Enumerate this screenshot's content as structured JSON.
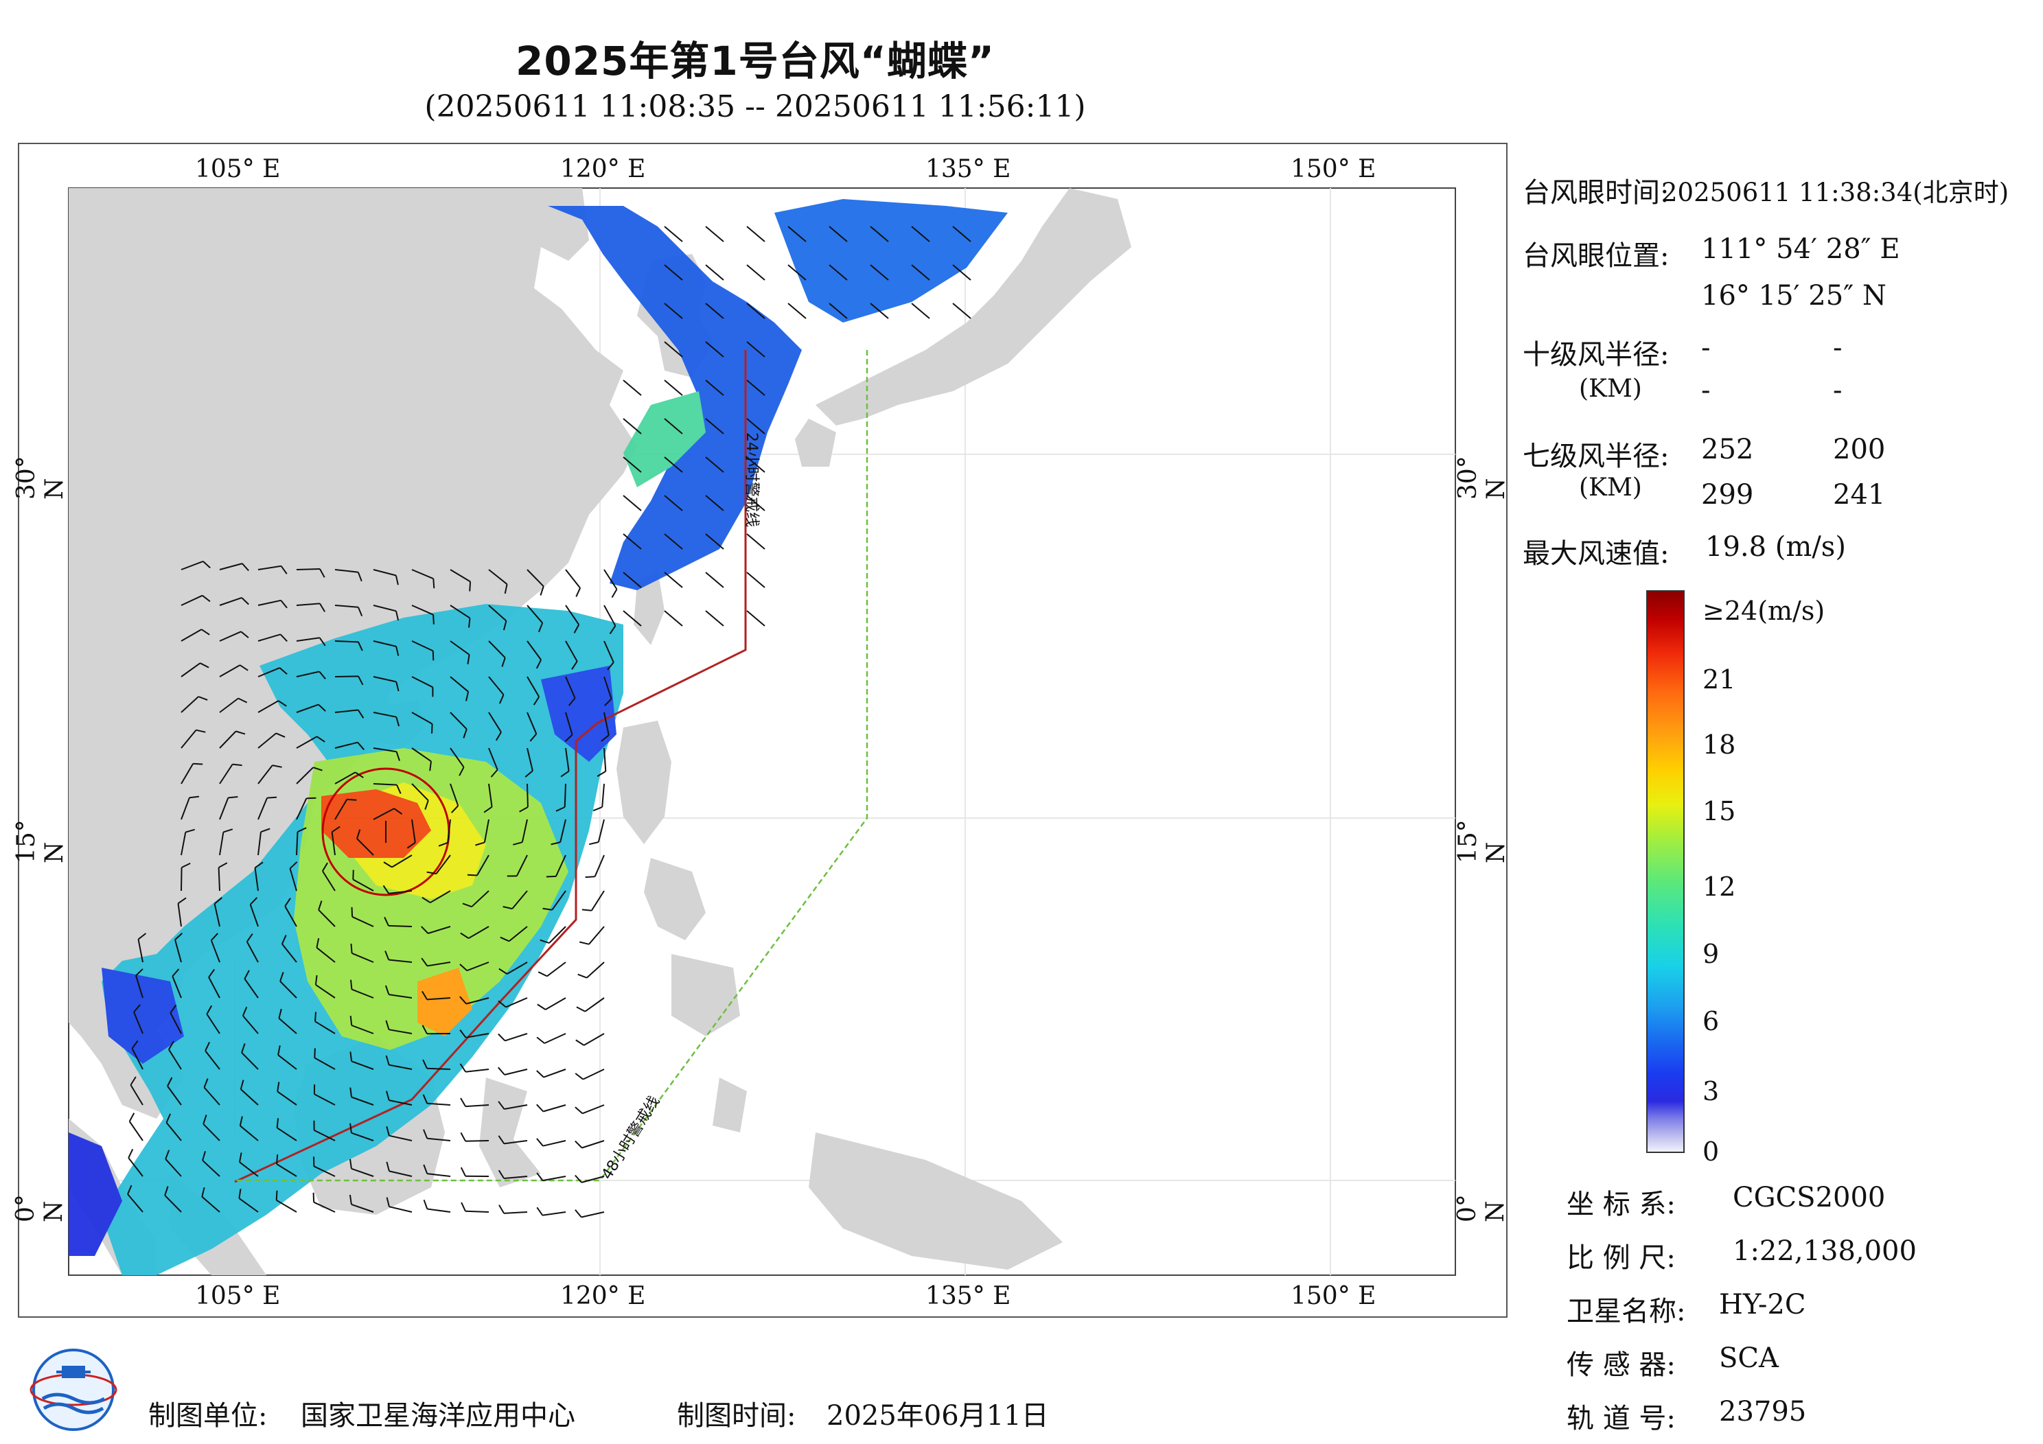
{
  "header": {
    "title": "2025年第1号台风“蝴蝶”",
    "subtitle": "(20250611 11:08:35 -- 20250611 11:56:11)"
  },
  "map": {
    "lon_ticks": [
      "105° E",
      "120° E",
      "135° E",
      "150° E"
    ],
    "lat_ticks": [
      "30° N",
      "15° N",
      "0° N"
    ],
    "line_24h_label": "24小时警戒线",
    "line_48h_label": "48小时警戒线"
  },
  "info": {
    "eye_time_label": "台风眼时间:",
    "eye_time_value": "20250611 11:38:34(北京时)",
    "eye_pos_label": "台风眼位置:",
    "eye_lon": "111° 54′ 28″ E",
    "eye_lat": "16° 15′ 25″ N",
    "r10_label": "十级风半径:",
    "r10_unit": "(KM)",
    "r10_values": [
      "-",
      "-",
      "-",
      "-"
    ],
    "r7_label": "七级风半径:",
    "r7_unit": "(KM)",
    "r7_values": [
      "252",
      "200",
      "299",
      "241"
    ],
    "max_wind_label": "最大风速值:",
    "max_wind_value": "19.8  (m/s)"
  },
  "colorbar": {
    "labels": [
      "≥24(m/s)",
      "21",
      "18",
      "15",
      "12",
      "9",
      "6",
      "3",
      "0"
    ]
  },
  "meta": {
    "coord_label": "坐 标 系:",
    "coord_value": "CGCS2000",
    "scale_label": "比 例 尺:",
    "scale_value": "1:22,138,000",
    "satellite_label": "卫星名称:",
    "satellite_value": "HY-2C",
    "sensor_label": "传 感 器:",
    "sensor_value": "SCA",
    "orbit_label": "轨 道 号:",
    "orbit_value": "23795"
  },
  "footer": {
    "producer_label": "制图单位:",
    "producer_value": "国家卫星海洋应用中心",
    "date_label": "制图时间:",
    "date_value": "2025年06月11日"
  },
  "colors": {
    "land": "#d4d4d4",
    "line_24h": "#b22222",
    "line_48h": "#6fbf3f",
    "typhoon_circle": "#c00000"
  }
}
